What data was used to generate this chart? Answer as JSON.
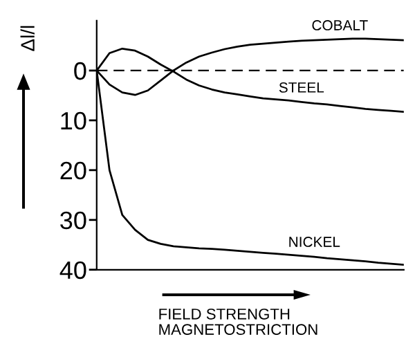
{
  "chart_data": {
    "type": "line",
    "ylabel": "Δl/l",
    "xlabel": "FIELD STRENGTH\nMAGNETOSTRICTION",
    "categories": [
      null,
      null,
      null,
      null,
      null,
      null,
      null,
      null,
      null,
      null,
      null,
      null,
      null,
      null,
      null,
      null,
      null,
      null,
      null,
      null,
      null,
      null,
      null,
      null,
      null
    ],
    "series": [
      {
        "name": "COBALT",
        "color": "#000000",
        "values": [
          0,
          2.8,
          4.4,
          4.9,
          4,
          2,
          0,
          -1.6,
          -2.8,
          -3.6,
          -4.3,
          -4.8,
          -5.2,
          -5.4,
          -5.6,
          -5.8,
          -6,
          -6.1,
          -6.2,
          -6.3,
          -6.4,
          -6.4,
          -6.3,
          -6.2,
          -6.1
        ]
      },
      {
        "name": "STEEL",
        "color": "#000000",
        "values": [
          0,
          -3.5,
          -4.4,
          -4,
          -2.8,
          -1.2,
          0.2,
          1.8,
          3,
          3.8,
          4.4,
          4.8,
          5.2,
          5.6,
          5.8,
          6,
          6.3,
          6.6,
          6.8,
          7.1,
          7.4,
          7.7,
          7.9,
          8.1,
          8.3
        ]
      },
      {
        "name": "NICKEL",
        "color": "#000000",
        "values": [
          0,
          20,
          29,
          32,
          34,
          34.8,
          35.3,
          35.5,
          35.7,
          35.8,
          36,
          36.2,
          36.4,
          36.6,
          36.8,
          37,
          37.2,
          37.4,
          37.7,
          37.9,
          38.1,
          38.3,
          38.6,
          38.8,
          39
        ]
      }
    ],
    "ylim": [
      40,
      -10
    ],
    "yticks": [
      0,
      10,
      20,
      30,
      40
    ],
    "tick_labels": "y",
    "ref_lines": [
      {
        "axis": "y",
        "value": 0,
        "line_style": "dashed",
        "color": "#000000"
      }
    ],
    "grid": false,
    "legend": false,
    "marker": "none",
    "line_style": "solid"
  }
}
